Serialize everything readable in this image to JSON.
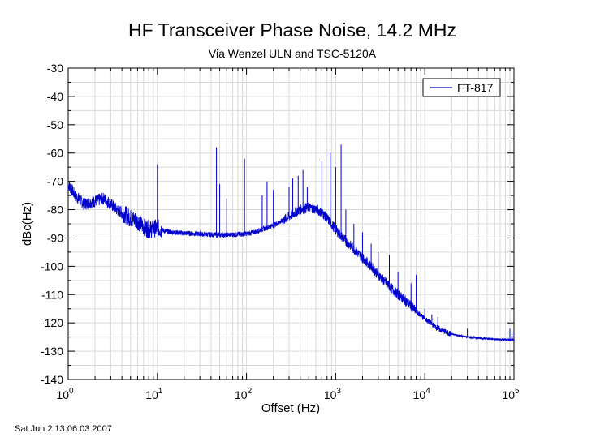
{
  "chart_data": {
    "type": "line",
    "title": "HF Transceiver Phase Noise, 14.2 MHz",
    "subtitle": "Via Wenzel ULN and TSC-5120A",
    "xlabel": "Offset (Hz)",
    "ylabel": "dBc(Hz)",
    "x_scale": "log",
    "xlim": [
      1,
      100000
    ],
    "ylim": [
      -140,
      -30
    ],
    "x_ticks": [
      {
        "base": "10",
        "exp": "0"
      },
      {
        "base": "10",
        "exp": "1"
      },
      {
        "base": "10",
        "exp": "2"
      },
      {
        "base": "10",
        "exp": "3"
      },
      {
        "base": "10",
        "exp": "4"
      },
      {
        "base": "10",
        "exp": "5"
      }
    ],
    "y_ticks": [
      "-30",
      "-40",
      "-50",
      "-60",
      "-70",
      "-80",
      "-90",
      "-100",
      "-110",
      "-120",
      "-130",
      "-140"
    ],
    "grid": true,
    "legend": {
      "position": "top-right",
      "entries": [
        "FT-817"
      ]
    },
    "series": [
      {
        "name": "FT-817",
        "color": "#0000cc",
        "x": [
          1,
          1.2,
          1.5,
          2,
          2.5,
          3,
          3.5,
          4,
          5,
          6,
          7,
          8,
          10,
          12,
          15,
          20,
          30,
          40,
          50,
          60,
          70,
          80,
          100,
          120,
          150,
          200,
          250,
          300,
          350,
          400,
          450,
          500,
          600,
          700,
          800,
          1000,
          1200,
          1500,
          2000,
          2500,
          3000,
          4000,
          5000,
          6000,
          7000,
          8000,
          10000,
          12000,
          15000,
          20000,
          30000,
          50000,
          100000
        ],
        "y": [
          -71,
          -75,
          -78,
          -77,
          -76,
          -78,
          -80,
          -81,
          -83,
          -84,
          -86,
          -87,
          -86.5,
          -87.5,
          -88,
          -88.3,
          -88.6,
          -88.8,
          -88.9,
          -88.9,
          -88.8,
          -88.7,
          -88.5,
          -88,
          -87,
          -85.5,
          -84,
          -82.5,
          -81,
          -80,
          -79.5,
          -79.2,
          -79.8,
          -81,
          -83,
          -87,
          -90,
          -93,
          -97,
          -100,
          -103,
          -107,
          -110,
          -112,
          -114,
          -116,
          -118.5,
          -120.5,
          -122.5,
          -124,
          -125,
          -125.6,
          -126
        ]
      }
    ],
    "spurs": [
      {
        "x": 10,
        "y": -64
      },
      {
        "x": 46,
        "y": -58
      },
      {
        "x": 50,
        "y": -71
      },
      {
        "x": 60,
        "y": -76
      },
      {
        "x": 95,
        "y": -62
      },
      {
        "x": 150,
        "y": -75
      },
      {
        "x": 170,
        "y": -70
      },
      {
        "x": 200,
        "y": -73
      },
      {
        "x": 300,
        "y": -72
      },
      {
        "x": 330,
        "y": -69
      },
      {
        "x": 380,
        "y": -68
      },
      {
        "x": 430,
        "y": -66
      },
      {
        "x": 480,
        "y": -72
      },
      {
        "x": 700,
        "y": -63
      },
      {
        "x": 870,
        "y": -60
      },
      {
        "x": 1000,
        "y": -65
      },
      {
        "x": 1150,
        "y": -57
      },
      {
        "x": 1300,
        "y": -80
      },
      {
        "x": 1600,
        "y": -85
      },
      {
        "x": 2000,
        "y": -88
      },
      {
        "x": 2500,
        "y": -92
      },
      {
        "x": 3000,
        "y": -95
      },
      {
        "x": 4000,
        "y": -96
      },
      {
        "x": 5000,
        "y": -102
      },
      {
        "x": 7000,
        "y": -106
      },
      {
        "x": 8000,
        "y": -103
      },
      {
        "x": 10000,
        "y": -115
      },
      {
        "x": 12000,
        "y": -117
      },
      {
        "x": 14000,
        "y": -118
      },
      {
        "x": 30000,
        "y": -122
      },
      {
        "x": 90000,
        "y": -122
      },
      {
        "x": 95000,
        "y": -123
      }
    ]
  },
  "footer": {
    "timestamp": "Sat Jun  2 13:06:03 2007"
  }
}
